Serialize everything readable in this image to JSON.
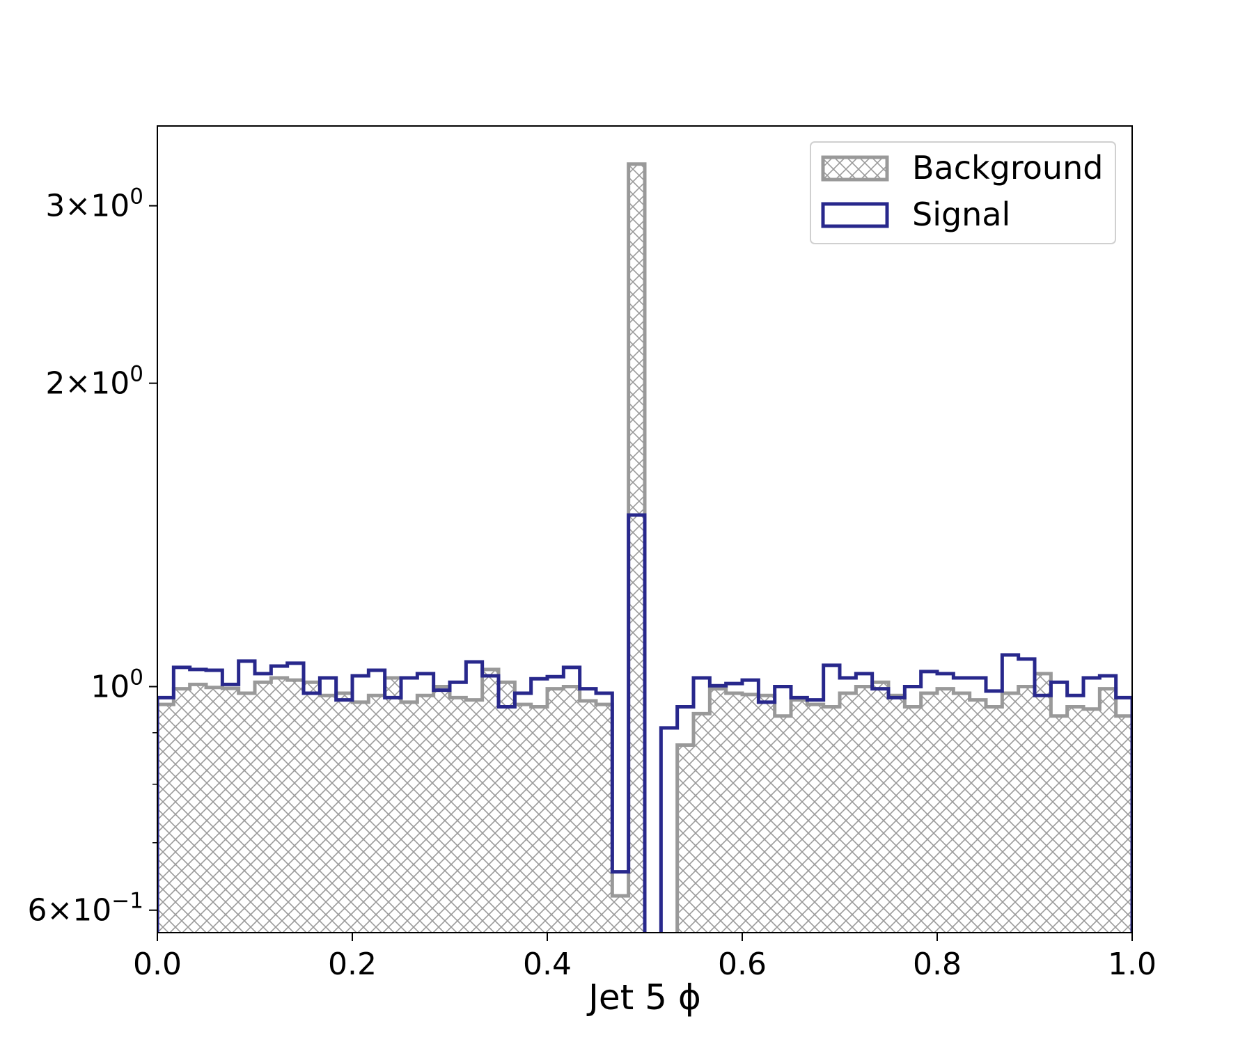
{
  "chart_data": {
    "type": "histogram",
    "xlabel": "Jet 5 ϕ",
    "ylabel": "",
    "xlim": [
      0.0,
      1.0
    ],
    "ylim": [
      0.57,
      3.6
    ],
    "yscale": "log",
    "grid": false,
    "legend": {
      "placement": "top-right",
      "entries": [
        "Background",
        "Signal"
      ]
    },
    "x_ticks": [
      {
        "value": 0.0,
        "label": "0.0"
      },
      {
        "value": 0.2,
        "label": "0.2"
      },
      {
        "value": 0.4,
        "label": "0.4"
      },
      {
        "value": 0.6,
        "label": "0.6"
      },
      {
        "value": 0.8,
        "label": "0.8"
      },
      {
        "value": 1.0,
        "label": "1.0"
      }
    ],
    "y_ticks": [
      {
        "value": 0.6,
        "mantissa": "6",
        "exp": "−1"
      },
      {
        "value": 1.0,
        "mantissa": "",
        "exp": "0"
      },
      {
        "value": 2.0,
        "mantissa": "2",
        "exp": "0"
      },
      {
        "value": 3.0,
        "mantissa": "3",
        "exp": "0"
      }
    ],
    "y_minor_ticks": [
      0.7,
      0.8,
      0.9
    ],
    "bin_edges": [
      0.0,
      0.01667,
      0.03333,
      0.05,
      0.06667,
      0.08333,
      0.1,
      0.11667,
      0.13333,
      0.15,
      0.16667,
      0.18333,
      0.2,
      0.21667,
      0.23333,
      0.25,
      0.26667,
      0.28333,
      0.3,
      0.31667,
      0.33333,
      0.35,
      0.36667,
      0.38333,
      0.4,
      0.41667,
      0.43333,
      0.45,
      0.46667,
      0.48333,
      0.5,
      0.51667,
      0.53333,
      0.55,
      0.56667,
      0.58333,
      0.6,
      0.61667,
      0.63333,
      0.65,
      0.66667,
      0.68333,
      0.7,
      0.71667,
      0.73333,
      0.75,
      0.76667,
      0.78333,
      0.8,
      0.81667,
      0.83333,
      0.85,
      0.86667,
      0.88333,
      0.9,
      0.91667,
      0.93333,
      0.95,
      0.96667,
      0.98333,
      1.0
    ],
    "series": [
      {
        "name": "Background",
        "style": "hatched",
        "color": "#999999",
        "values": [
          0.96,
          0.995,
          1.005,
          0.998,
          0.996,
          0.985,
          1.01,
          1.02,
          1.015,
          1.01,
          0.98,
          0.985,
          0.965,
          0.98,
          1.02,
          0.965,
          0.98,
          1.0,
          0.975,
          0.97,
          1.04,
          1.01,
          0.96,
          0.955,
          0.995,
          1.0,
          0.968,
          0.96,
          0.62,
          3.3,
          null,
          null,
          0.875,
          0.94,
          0.995,
          0.985,
          0.982,
          0.98,
          0.935,
          0.97,
          0.96,
          0.955,
          0.985,
          1.0,
          1.01,
          0.98,
          0.955,
          0.985,
          0.995,
          0.985,
          0.97,
          0.955,
          0.985,
          1.0,
          1.03,
          0.935,
          0.955,
          0.95,
          0.995,
          0.935
        ]
      },
      {
        "name": "Signal",
        "style": "step",
        "color": "#28288c",
        "values": [
          0.975,
          1.045,
          1.04,
          1.038,
          1.005,
          1.06,
          1.03,
          1.048,
          1.055,
          0.985,
          1.02,
          0.97,
          1.025,
          1.038,
          0.975,
          1.02,
          1.03,
          0.992,
          1.01,
          1.058,
          1.025,
          0.955,
          0.985,
          1.018,
          1.023,
          1.045,
          0.995,
          0.985,
          0.655,
          1.48,
          null,
          0.91,
          0.955,
          1.02,
          1.002,
          1.007,
          1.015,
          0.965,
          1.0,
          0.975,
          0.97,
          1.05,
          1.02,
          1.03,
          0.995,
          0.975,
          1.0,
          1.035,
          1.03,
          1.02,
          1.02,
          0.99,
          1.075,
          1.065,
          0.98,
          1.01,
          0.98,
          1.02,
          1.025,
          0.975
        ]
      }
    ]
  }
}
